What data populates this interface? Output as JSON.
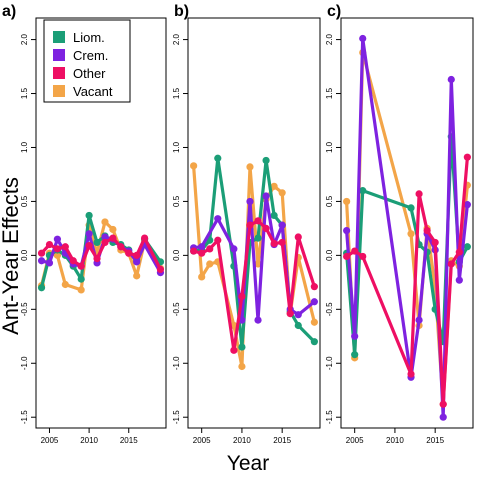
{
  "ylabel": "Ant-Year Effects",
  "xlabel": "Year",
  "legend": {
    "placement": "top-left",
    "entries": [
      {
        "name": "Liom.",
        "color": "#1b9e77"
      },
      {
        "name": "Crem.",
        "color": "#7e22e0"
      },
      {
        "name": "Other",
        "color": "#ee0f63"
      },
      {
        "name": "Vacant",
        "color": "#f3a548"
      }
    ]
  },
  "chart_data": [
    {
      "type": "line",
      "panel_label": "a)",
      "xlim": [
        2003.3,
        2019.7
      ],
      "ylim": [
        -1.6,
        2.2
      ],
      "xticks": [
        2005,
        2010,
        2015
      ],
      "yticks": [
        -1.5,
        -1.0,
        -0.5,
        0.0,
        0.5,
        1.0,
        1.5,
        2.0
      ],
      "series": [
        {
          "name": "Liom.",
          "color": "#1b9e77",
          "points": [
            [
              2004,
              -0.3
            ],
            [
              2005,
              0.0
            ],
            [
              2006,
              0.05
            ],
            [
              2007,
              0.0
            ],
            [
              2008,
              -0.1
            ],
            [
              2009,
              -0.22
            ],
            [
              2010,
              0.37
            ],
            [
              2011,
              0.12
            ],
            [
              2012,
              0.18
            ],
            [
              2013,
              0.12
            ],
            [
              2014,
              0.1
            ],
            [
              2015,
              0.05
            ],
            [
              2016,
              -0.05
            ],
            [
              2017,
              0.15
            ],
            [
              2019,
              -0.06
            ]
          ]
        },
        {
          "name": "Crem.",
          "color": "#7e22e0",
          "points": [
            [
              2004,
              -0.05
            ],
            [
              2005,
              -0.07
            ],
            [
              2006,
              0.15
            ],
            [
              2007,
              0.02
            ],
            [
              2008,
              -0.08
            ],
            [
              2009,
              -0.1
            ],
            [
              2010,
              0.2
            ],
            [
              2011,
              -0.07
            ],
            [
              2012,
              0.17
            ],
            [
              2013,
              0.15
            ],
            [
              2014,
              0.08
            ],
            [
              2015,
              0.04
            ],
            [
              2016,
              -0.06
            ],
            [
              2017,
              0.1
            ],
            [
              2019,
              -0.16
            ]
          ]
        },
        {
          "name": "Other",
          "color": "#ee0f63",
          "points": [
            [
              2004,
              0.02
            ],
            [
              2005,
              0.1
            ],
            [
              2006,
              0.06
            ],
            [
              2007,
              0.08
            ],
            [
              2008,
              -0.05
            ],
            [
              2009,
              -0.1
            ],
            [
              2010,
              0.09
            ],
            [
              2011,
              -0.03
            ],
            [
              2012,
              0.12
            ],
            [
              2013,
              0.16
            ],
            [
              2014,
              0.08
            ],
            [
              2015,
              0.02
            ],
            [
              2016,
              0.0
            ],
            [
              2017,
              0.16
            ],
            [
              2019,
              -0.13
            ]
          ]
        },
        {
          "name": "Vacant",
          "color": "#f3a548",
          "points": [
            [
              2004,
              -0.28
            ],
            [
              2005,
              0.02
            ],
            [
              2006,
              0.0
            ],
            [
              2007,
              -0.27
            ],
            [
              2009,
              -0.32
            ],
            [
              2010,
              0.28
            ],
            [
              2011,
              0.02
            ],
            [
              2012,
              0.31
            ],
            [
              2013,
              0.24
            ],
            [
              2014,
              0.05
            ],
            [
              2015,
              0.02
            ],
            [
              2016,
              -0.19
            ],
            [
              2017,
              0.13
            ],
            [
              2019,
              -0.12
            ]
          ]
        }
      ]
    },
    {
      "type": "line",
      "panel_label": "b)",
      "xlim": [
        2003.3,
        2019.7
      ],
      "ylim": [
        -1.6,
        2.2
      ],
      "xticks": [
        2005,
        2010,
        2015
      ],
      "yticks": [
        -1.5,
        -1.0,
        -0.5,
        0.0,
        0.5,
        1.0,
        1.5,
        2.0
      ],
      "series": [
        {
          "name": "Liom.",
          "color": "#1b9e77",
          "points": [
            [
              2004,
              0.04
            ],
            [
              2005,
              0.05
            ],
            [
              2006,
              0.14
            ],
            [
              2007,
              0.9
            ],
            [
              2009,
              -0.1
            ],
            [
              2010,
              -0.85
            ],
            [
              2011,
              0.12
            ],
            [
              2012,
              0.16
            ],
            [
              2013,
              0.88
            ],
            [
              2014,
              0.37
            ],
            [
              2015,
              0.28
            ],
            [
              2016,
              -0.52
            ],
            [
              2017,
              -0.65
            ],
            [
              2019,
              -0.8
            ]
          ]
        },
        {
          "name": "Crem.",
          "color": "#7e22e0",
          "points": [
            [
              2004,
              0.07
            ],
            [
              2005,
              0.08
            ],
            [
              2007,
              0.34
            ],
            [
              2009,
              0.06
            ],
            [
              2010,
              -0.6
            ],
            [
              2011,
              0.5
            ],
            [
              2012,
              -0.6
            ],
            [
              2013,
              0.55
            ],
            [
              2014,
              0.1
            ],
            [
              2015,
              0.28
            ],
            [
              2016,
              -0.5
            ],
            [
              2017,
              -0.55
            ],
            [
              2019,
              -0.43
            ]
          ]
        },
        {
          "name": "Other",
          "color": "#ee0f63",
          "points": [
            [
              2004,
              0.04
            ],
            [
              2005,
              0.02
            ],
            [
              2006,
              0.06
            ],
            [
              2007,
              0.14
            ],
            [
              2009,
              -0.88
            ],
            [
              2010,
              -0.38
            ],
            [
              2011,
              0.28
            ],
            [
              2012,
              0.32
            ],
            [
              2013,
              0.25
            ],
            [
              2014,
              0.11
            ],
            [
              2015,
              0.12
            ],
            [
              2016,
              -0.54
            ],
            [
              2017,
              0.17
            ],
            [
              2019,
              -0.29
            ]
          ]
        },
        {
          "name": "Vacant",
          "color": "#f3a548",
          "points": [
            [
              2004,
              0.83
            ],
            [
              2005,
              -0.2
            ],
            [
              2006,
              -0.08
            ],
            [
              2007,
              -0.06
            ],
            [
              2009,
              -0.65
            ],
            [
              2010,
              -1.03
            ],
            [
              2011,
              0.82
            ],
            [
              2012,
              -0.08
            ],
            [
              2013,
              0.52
            ],
            [
              2014,
              0.64
            ],
            [
              2015,
              0.58
            ],
            [
              2016,
              -0.54
            ],
            [
              2017,
              -0.02
            ],
            [
              2019,
              -0.62
            ]
          ]
        }
      ]
    },
    {
      "type": "line",
      "panel_label": "c)",
      "xlim": [
        2003.3,
        2019.7
      ],
      "ylim": [
        -1.6,
        2.2
      ],
      "xticks": [
        2005,
        2010,
        2015
      ],
      "yticks": [
        -1.5,
        -1.0,
        -0.5,
        0.0,
        0.5,
        1.0,
        1.5,
        2.0
      ],
      "series": [
        {
          "name": "Liom.",
          "color": "#1b9e77",
          "points": [
            [
              2004,
              0.02
            ],
            [
              2005,
              -0.92
            ],
            [
              2006,
              0.6
            ],
            [
              2012,
              0.44
            ],
            [
              2013,
              0.1
            ],
            [
              2014,
              0.03
            ],
            [
              2015,
              -0.5
            ],
            [
              2016,
              -0.8
            ],
            [
              2017,
              1.1
            ],
            [
              2018,
              -0.06
            ],
            [
              2019,
              0.08
            ]
          ]
        },
        {
          "name": "Crem.",
          "color": "#7e22e0",
          "points": [
            [
              2004,
              0.23
            ],
            [
              2005,
              -0.75
            ],
            [
              2006,
              2.01
            ],
            [
              2012,
              -1.13
            ],
            [
              2013,
              -0.6
            ],
            [
              2014,
              0.2
            ],
            [
              2015,
              0.05
            ],
            [
              2016,
              -1.5
            ],
            [
              2017,
              1.63
            ],
            [
              2018,
              -0.23
            ],
            [
              2019,
              0.47
            ]
          ]
        },
        {
          "name": "Other",
          "color": "#ee0f63",
          "points": [
            [
              2004,
              -0.01
            ],
            [
              2005,
              0.04
            ],
            [
              2006,
              -0.01
            ],
            [
              2012,
              -1.1
            ],
            [
              2013,
              0.57
            ],
            [
              2014,
              0.23
            ],
            [
              2015,
              0.12
            ],
            [
              2016,
              -1.38
            ],
            [
              2017,
              -0.08
            ],
            [
              2018,
              0.03
            ],
            [
              2019,
              0.91
            ]
          ]
        },
        {
          "name": "Vacant",
          "color": "#f3a548",
          "points": [
            [
              2004,
              0.5
            ],
            [
              2005,
              -0.95
            ],
            [
              2006,
              1.88
            ],
            [
              2012,
              0.2
            ],
            [
              2013,
              -0.65
            ],
            [
              2014,
              0.25
            ],
            [
              2015,
              -0.3
            ],
            [
              2016,
              -1.38
            ],
            [
              2017,
              -0.05
            ],
            [
              2018,
              -0.1
            ],
            [
              2019,
              0.65
            ]
          ]
        }
      ]
    }
  ]
}
